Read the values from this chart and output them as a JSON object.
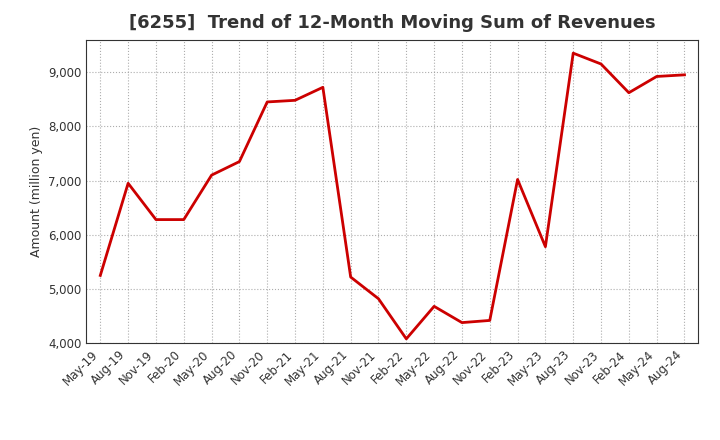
{
  "title": "[6255]  Trend of 12-Month Moving Sum of Revenues",
  "ylabel": "Amount (million yen)",
  "line_color": "#cc0000",
  "background_color": "#ffffff",
  "plot_bg_color": "#ffffff",
  "grid_color": "#999999",
  "title_color": "#333333",
  "tick_color": "#333333",
  "ylim": [
    4000,
    9600
  ],
  "yticks": [
    4000,
    5000,
    6000,
    7000,
    8000,
    9000
  ],
  "x_labels": [
    "May-19",
    "Aug-19",
    "Nov-19",
    "Feb-20",
    "May-20",
    "Aug-20",
    "Nov-20",
    "Feb-21",
    "May-21",
    "Aug-21",
    "Nov-21",
    "Feb-22",
    "May-22",
    "Aug-22",
    "Nov-22",
    "Feb-23",
    "May-23",
    "Aug-23",
    "Nov-23",
    "Feb-24",
    "May-24",
    "Aug-24"
  ],
  "values": [
    5250,
    6950,
    6280,
    6280,
    7100,
    7350,
    8450,
    8480,
    8720,
    5220,
    4820,
    4080,
    4680,
    4380,
    4420,
    7020,
    5780,
    9350,
    9150,
    8620,
    8920,
    8950
  ],
  "title_fontsize": 13,
  "ylabel_fontsize": 9,
  "tick_fontsize": 8.5,
  "linewidth": 2.0
}
